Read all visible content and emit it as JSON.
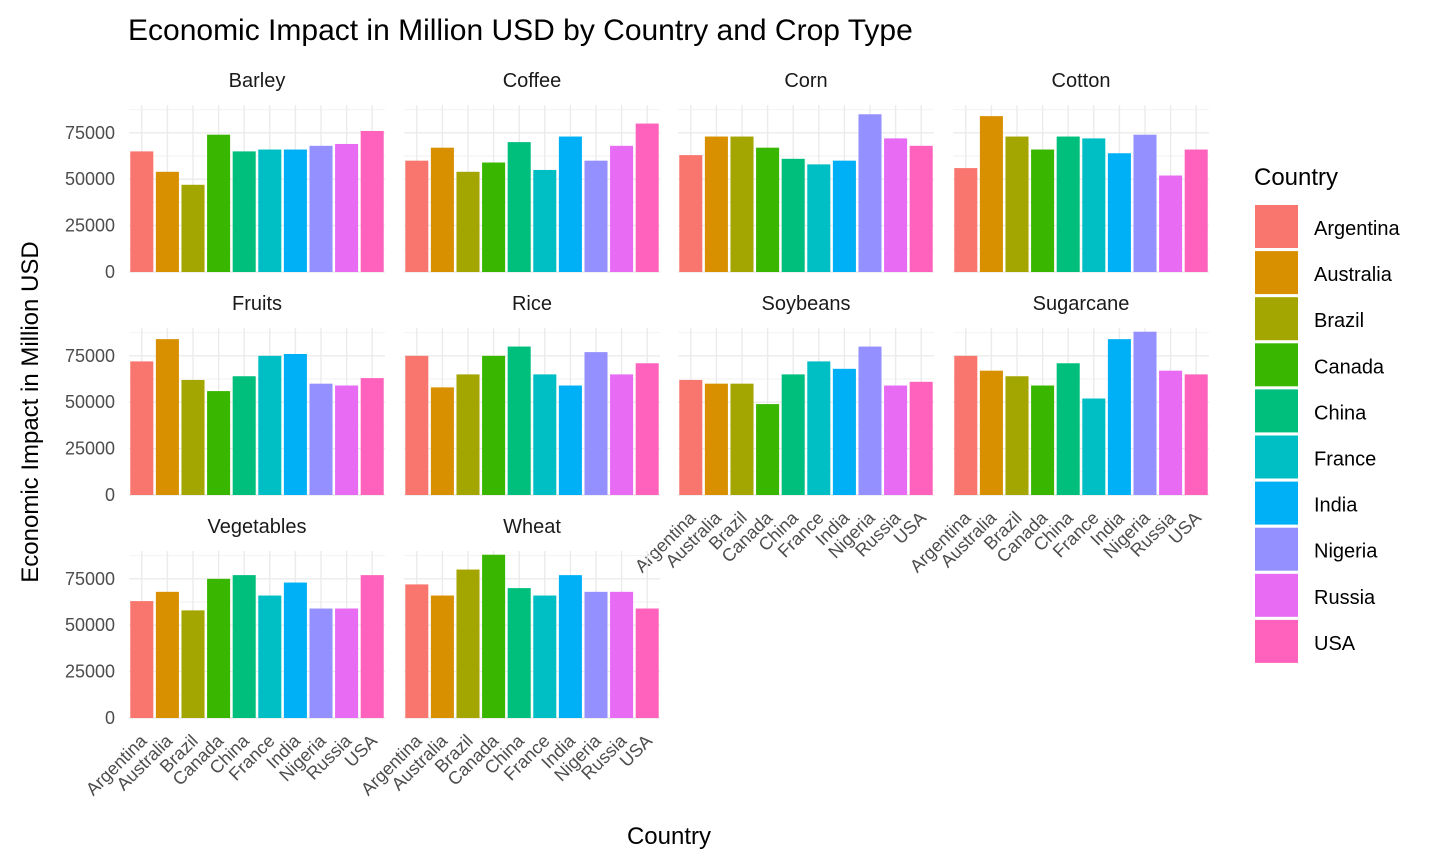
{
  "chart_data": {
    "type": "bar",
    "title": "Economic Impact in Million USD by Country and Crop Type",
    "xlabel": "Country",
    "ylabel": "Economic Impact in Million USD",
    "ylim": [
      0,
      90000
    ],
    "yticks": [
      0,
      25000,
      50000,
      75000
    ],
    "ytick_labels": [
      "0",
      "25000",
      "50000",
      "75000"
    ],
    "grid": true,
    "legend_position": "right",
    "legend_title": "Country",
    "categories": [
      "Argentina",
      "Australia",
      "Brazil",
      "Canada",
      "China",
      "France",
      "India",
      "Nigeria",
      "Russia",
      "USA"
    ],
    "colors": [
      "#F8766D",
      "#D89000",
      "#A3A500",
      "#39B600",
      "#00BF7D",
      "#00BFC4",
      "#00B0F6",
      "#9590FF",
      "#E76BF3",
      "#FF62BC"
    ],
    "facets": [
      {
        "name": "Barley",
        "values": [
          65000,
          54000,
          47000,
          74000,
          65000,
          66000,
          66000,
          68000,
          69000,
          76000
        ]
      },
      {
        "name": "Coffee",
        "values": [
          60000,
          67000,
          54000,
          59000,
          70000,
          55000,
          73000,
          60000,
          68000,
          80000
        ]
      },
      {
        "name": "Corn",
        "values": [
          63000,
          73000,
          73000,
          67000,
          61000,
          58000,
          60000,
          85000,
          72000,
          68000
        ]
      },
      {
        "name": "Cotton",
        "values": [
          56000,
          84000,
          73000,
          66000,
          73000,
          72000,
          64000,
          74000,
          52000,
          66000
        ]
      },
      {
        "name": "Fruits",
        "values": [
          72000,
          84000,
          62000,
          56000,
          64000,
          75000,
          76000,
          60000,
          59000,
          63000
        ]
      },
      {
        "name": "Rice",
        "values": [
          75000,
          58000,
          65000,
          75000,
          80000,
          65000,
          59000,
          77000,
          65000,
          71000
        ]
      },
      {
        "name": "Soybeans",
        "values": [
          62000,
          60000,
          60000,
          49000,
          65000,
          72000,
          68000,
          80000,
          59000,
          61000
        ]
      },
      {
        "name": "Sugarcane",
        "values": [
          75000,
          67000,
          64000,
          59000,
          71000,
          52000,
          84000,
          88000,
          67000,
          65000
        ]
      },
      {
        "name": "Vegetables",
        "values": [
          63000,
          68000,
          58000,
          75000,
          77000,
          66000,
          73000,
          59000,
          59000,
          77000
        ]
      },
      {
        "name": "Wheat",
        "values": [
          72000,
          66000,
          80000,
          88000,
          70000,
          66000,
          77000,
          68000,
          68000,
          59000
        ]
      }
    ]
  }
}
